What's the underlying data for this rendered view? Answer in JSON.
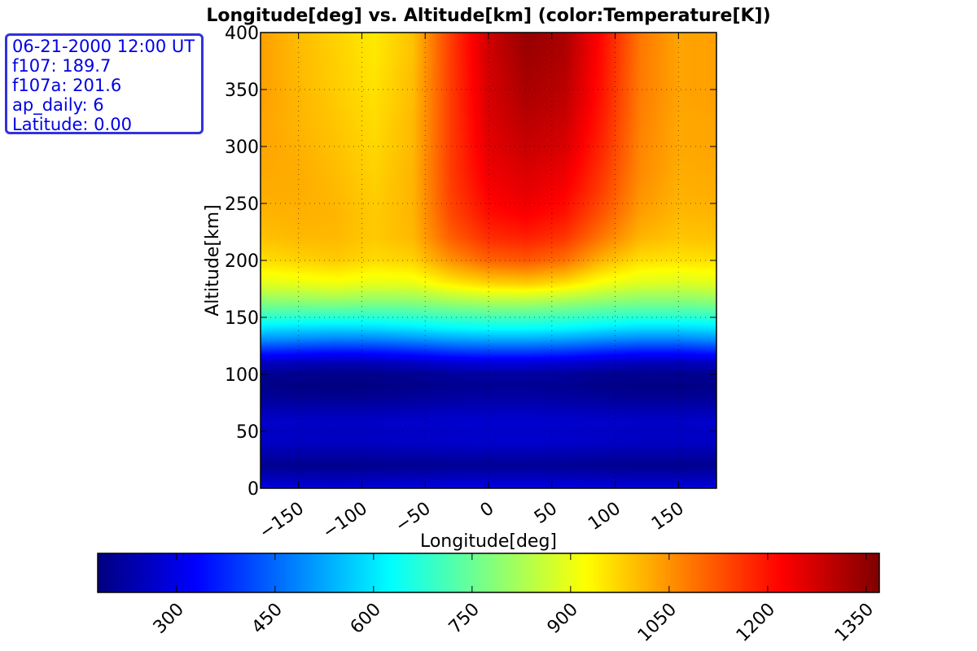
{
  "info_box": {
    "lines": [
      "06-21-2000 12:00 UT",
      "f107: 189.7",
      "f107a: 201.6",
      "ap_daily: 6",
      "Latitude: 0.00"
    ]
  },
  "chart_data": {
    "type": "heatmap",
    "title": "Longitude[deg] vs. Altitude[km] (color:Temperature[K])",
    "xlabel": "Longitude[deg]",
    "ylabel": "Altitude[km]",
    "xlim": [
      -180,
      180
    ],
    "ylim": [
      0,
      400
    ],
    "xticks": [
      -150,
      -100,
      -50,
      0,
      50,
      100,
      150
    ],
    "xtick_labels": [
      "−150",
      "−100",
      "−50",
      "0",
      "50",
      "100",
      "150"
    ],
    "yticks": [
      0,
      50,
      100,
      150,
      200,
      250,
      300,
      350,
      400
    ],
    "ytick_labels": [
      "0",
      "50",
      "100",
      "150",
      "200",
      "250",
      "300",
      "350",
      "400"
    ],
    "grid": true,
    "colormap": "jet",
    "colorbar": {
      "orientation": "horizontal",
      "range": [
        180,
        1370
      ],
      "ticks": [
        300,
        450,
        600,
        750,
        900,
        1050,
        1200,
        1350
      ],
      "tick_labels": [
        "300",
        "450",
        "600",
        "750",
        "900",
        "1050",
        "1200",
        "1350"
      ]
    },
    "color_variable": "Temperature[K]",
    "x": [
      -180,
      -150,
      -120,
      -90,
      -60,
      -30,
      0,
      30,
      60,
      90,
      120,
      150,
      180
    ],
    "y": [
      0,
      20,
      40,
      60,
      80,
      90,
      100,
      110,
      120,
      130,
      140,
      150,
      160,
      170,
      180,
      200,
      220,
      240,
      260,
      280,
      300,
      320,
      340,
      360,
      380,
      400
    ],
    "z": [
      [
        290,
        285,
        280,
        285,
        290,
        295,
        295,
        295,
        295,
        290,
        285,
        285,
        290
      ],
      [
        200,
        198,
        195,
        198,
        200,
        203,
        205,
        205,
        203,
        200,
        198,
        198,
        200
      ],
      [
        260,
        258,
        255,
        258,
        262,
        266,
        268,
        268,
        266,
        262,
        258,
        258,
        260
      ],
      [
        265,
        263,
        260,
        262,
        265,
        270,
        272,
        272,
        270,
        265,
        262,
        262,
        265
      ],
      [
        210,
        205,
        200,
        202,
        210,
        218,
        222,
        222,
        218,
        210,
        205,
        205,
        210
      ],
      [
        190,
        185,
        180,
        185,
        192,
        200,
        205,
        205,
        200,
        192,
        185,
        185,
        190
      ],
      [
        205,
        200,
        195,
        198,
        205,
        215,
        220,
        220,
        215,
        205,
        200,
        200,
        205
      ],
      [
        255,
        248,
        240,
        245,
        258,
        275,
        285,
        285,
        275,
        258,
        245,
        245,
        255
      ],
      [
        370,
        360,
        350,
        355,
        370,
        390,
        400,
        400,
        390,
        370,
        355,
        355,
        370
      ],
      [
        490,
        480,
        470,
        475,
        490,
        510,
        520,
        520,
        510,
        490,
        475,
        475,
        490
      ],
      [
        590,
        580,
        575,
        580,
        595,
        615,
        625,
        625,
        615,
        595,
        580,
        580,
        590
      ],
      [
        680,
        675,
        670,
        670,
        680,
        695,
        705,
        705,
        695,
        680,
        670,
        670,
        680
      ],
      [
        760,
        760,
        765,
        755,
        760,
        780,
        795,
        795,
        780,
        760,
        750,
        750,
        760
      ],
      [
        830,
        835,
        845,
        830,
        835,
        865,
        885,
        890,
        870,
        840,
        820,
        820,
        830
      ],
      [
        890,
        900,
        910,
        895,
        900,
        945,
        975,
        985,
        960,
        910,
        885,
        880,
        890
      ],
      [
        960,
        975,
        985,
        965,
        975,
        1050,
        1105,
        1120,
        1090,
        1010,
        960,
        955,
        960
      ],
      [
        995,
        1005,
        1005,
        985,
        1005,
        1110,
        1170,
        1185,
        1160,
        1080,
        1010,
        990,
        995
      ],
      [
        1010,
        1015,
        1010,
        985,
        1010,
        1135,
        1205,
        1225,
        1200,
        1120,
        1035,
        1005,
        1010
      ],
      [
        1020,
        1020,
        1005,
        980,
        1010,
        1145,
        1225,
        1250,
        1225,
        1145,
        1050,
        1015,
        1020
      ],
      [
        1025,
        1020,
        1000,
        975,
        1010,
        1150,
        1240,
        1265,
        1245,
        1160,
        1060,
        1020,
        1025
      ],
      [
        1030,
        1015,
        995,
        970,
        1005,
        1150,
        1250,
        1285,
        1265,
        1175,
        1065,
        1025,
        1030
      ],
      [
        1030,
        1010,
        990,
        965,
        1005,
        1150,
        1260,
        1300,
        1280,
        1185,
        1070,
        1025,
        1030
      ],
      [
        1035,
        1010,
        985,
        960,
        1000,
        1150,
        1265,
        1315,
        1295,
        1195,
        1075,
        1030,
        1035
      ],
      [
        1035,
        1005,
        980,
        955,
        1000,
        1150,
        1270,
        1325,
        1305,
        1200,
        1078,
        1030,
        1035
      ],
      [
        1035,
        1005,
        978,
        950,
        995,
        1150,
        1275,
        1335,
        1315,
        1205,
        1080,
        1030,
        1035
      ],
      [
        1035,
        1000,
        975,
        948,
        995,
        1150,
        1278,
        1345,
        1320,
        1210,
        1082,
        1030,
        1035
      ]
    ]
  }
}
